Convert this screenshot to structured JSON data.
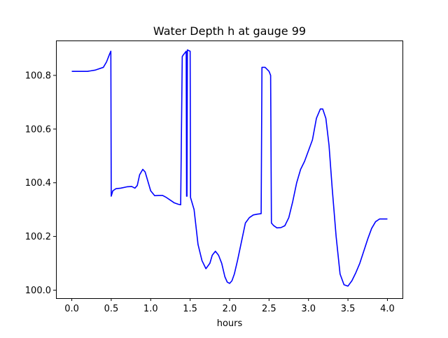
{
  "chart_data": {
    "type": "line",
    "title": "Water Depth h at gauge 99",
    "xlabel": "hours",
    "ylabel": "",
    "xlim": [
      -0.2,
      4.2
    ],
    "ylim": [
      99.97,
      100.93
    ],
    "xticks": [
      0.0,
      0.5,
      1.0,
      1.5,
      2.0,
      2.5,
      3.0,
      3.5,
      4.0
    ],
    "xtick_labels": [
      "0.0",
      "0.5",
      "1.0",
      "1.5",
      "2.0",
      "2.5",
      "3.0",
      "3.5",
      "4.0"
    ],
    "yticks": [
      100.0,
      100.2,
      100.4,
      100.6,
      100.8
    ],
    "ytick_labels": [
      "100.0",
      "100.2",
      "100.4",
      "100.6",
      "100.8"
    ],
    "grid": false,
    "legend": "none",
    "series": [
      {
        "color": "#0000ff",
        "x": [
          0.0,
          0.2,
          0.3,
          0.4,
          0.44,
          0.48,
          0.495,
          0.5,
          0.52,
          0.56,
          0.62,
          0.7,
          0.76,
          0.8,
          0.83,
          0.86,
          0.9,
          0.93,
          0.96,
          1.0,
          1.05,
          1.1,
          1.15,
          1.2,
          1.25,
          1.3,
          1.35,
          1.38,
          1.4,
          1.41,
          1.45,
          1.455,
          1.46,
          1.465,
          1.5,
          1.505,
          1.51,
          1.55,
          1.6,
          1.65,
          1.7,
          1.75,
          1.78,
          1.82,
          1.86,
          1.9,
          1.94,
          1.97,
          2.0,
          2.03,
          2.06,
          2.1,
          2.15,
          2.2,
          2.25,
          2.3,
          2.35,
          2.4,
          2.41,
          2.45,
          2.5,
          2.52,
          2.53,
          2.56,
          2.6,
          2.65,
          2.7,
          2.75,
          2.8,
          2.85,
          2.9,
          2.95,
          3.0,
          3.05,
          3.1,
          3.15,
          3.18,
          3.22,
          3.26,
          3.3,
          3.35,
          3.4,
          3.45,
          3.5,
          3.55,
          3.6,
          3.65,
          3.7,
          3.75,
          3.8,
          3.85,
          3.9,
          3.93,
          3.96,
          4.0
        ],
        "y": [
          100.815,
          100.815,
          100.82,
          100.83,
          100.85,
          100.88,
          100.89,
          100.35,
          100.37,
          100.378,
          100.38,
          100.385,
          100.386,
          100.38,
          100.39,
          100.43,
          100.45,
          100.44,
          100.41,
          100.37,
          100.352,
          100.353,
          100.353,
          100.345,
          100.335,
          100.325,
          100.32,
          100.318,
          100.87,
          100.875,
          100.89,
          100.35,
          100.35,
          100.895,
          100.89,
          100.345,
          100.34,
          100.3,
          100.17,
          100.11,
          100.08,
          100.1,
          100.13,
          100.145,
          100.13,
          100.1,
          100.05,
          100.03,
          100.025,
          100.035,
          100.06,
          100.11,
          100.18,
          100.25,
          100.27,
          100.28,
          100.283,
          100.285,
          100.83,
          100.83,
          100.815,
          100.8,
          100.25,
          100.24,
          100.232,
          100.233,
          100.24,
          100.27,
          100.33,
          100.4,
          100.45,
          100.48,
          100.52,
          100.56,
          100.64,
          100.675,
          100.675,
          100.64,
          100.54,
          100.38,
          100.2,
          100.06,
          100.02,
          100.015,
          100.035,
          100.065,
          100.1,
          100.145,
          100.19,
          100.23,
          100.255,
          100.265,
          100.265,
          100.265,
          100.265
        ]
      }
    ]
  }
}
